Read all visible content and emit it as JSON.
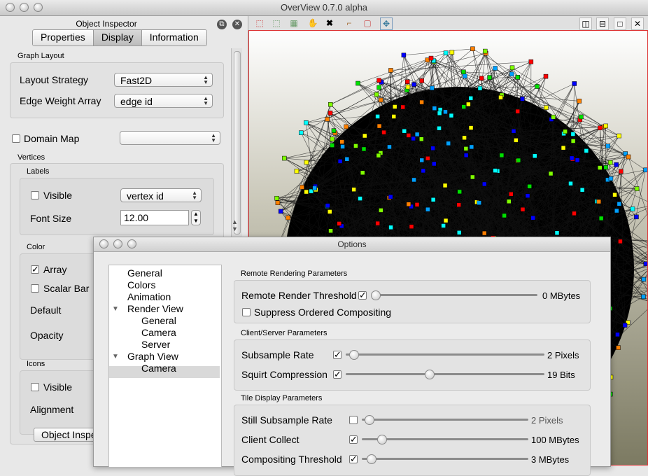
{
  "window": {
    "title": "OverView 0.7.0 alpha"
  },
  "inspector": {
    "title": "Object Inspector",
    "tabs": [
      "Properties",
      "Display",
      "Information"
    ],
    "active_tab": "Display",
    "graph_layout": {
      "group_label": "Graph Layout",
      "layout_strategy_label": "Layout Strategy",
      "layout_strategy_value": "Fast2D",
      "edge_weight_label": "Edge Weight Array",
      "edge_weight_value": "edge id"
    },
    "domain_map": {
      "label": "Domain Map",
      "value": "",
      "checked": false
    },
    "vertices": {
      "group_label": "Vertices",
      "labels": {
        "group_label": "Labels",
        "visible_label": "Visible",
        "visible_checked": false,
        "array_value": "vertex id",
        "font_size_label": "Font Size",
        "font_size_value": "12.00"
      },
      "color": {
        "group_label": "Color",
        "array_label": "Array",
        "array_checked": true,
        "scalar_bar_label": "Scalar Bar",
        "scalar_bar_checked": false,
        "default_label": "Default",
        "opacity_label": "Opacity"
      },
      "icons": {
        "group_label": "Icons",
        "visible_label": "Visible",
        "visible_checked": false,
        "alignment_label": "Alignment"
      }
    },
    "bottom_tab": "Object Inspe"
  },
  "options": {
    "title": "Options",
    "tree": [
      {
        "label": "General",
        "level": 0
      },
      {
        "label": "Colors",
        "level": 0
      },
      {
        "label": "Animation",
        "level": 0
      },
      {
        "label": "Render View",
        "level": 0,
        "expanded": true
      },
      {
        "label": "General",
        "level": 1
      },
      {
        "label": "Camera",
        "level": 1
      },
      {
        "label": "Server",
        "level": 1,
        "selected": true
      },
      {
        "label": "Graph View",
        "level": 0,
        "expanded": true
      },
      {
        "label": "Camera",
        "level": 1
      }
    ],
    "remote": {
      "title": "Remote Rendering Parameters",
      "threshold_label": "Remote Render Threshold",
      "threshold_checked": true,
      "threshold_value": "0 MBytes",
      "threshold_level": 0,
      "suppress_label": "Suppress Ordered Compositing",
      "suppress_checked": false
    },
    "client_server": {
      "title": "Client/Server Parameters",
      "subsample_label": "Subsample Rate",
      "subsample_checked": true,
      "subsample_value": "2 Pixels",
      "subsample_level": 0.02,
      "squirt_label": "Squirt Compression",
      "squirt_checked": true,
      "squirt_value": "19 Bits",
      "squirt_level": 0.42
    },
    "tile": {
      "title": "Tile Display Parameters",
      "still_label": "Still Subsample Rate",
      "still_checked": false,
      "still_value": "2 Pixels",
      "still_level": 0.02,
      "collect_label": "Client Collect",
      "collect_checked": true,
      "collect_value": "100 MBytes",
      "collect_level": 0.1,
      "compositing_label": "Compositing Threshold",
      "compositing_checked": true,
      "compositing_value": "3 MBytes",
      "compositing_level": 0.03
    }
  },
  "colors": {
    "view_border": "#dd3333",
    "node_palette": [
      "#00e000",
      "#00ffff",
      "#ffff00",
      "#ff8000",
      "#ff0000",
      "#0000ff",
      "#80ff00",
      "#00a0ff"
    ]
  }
}
